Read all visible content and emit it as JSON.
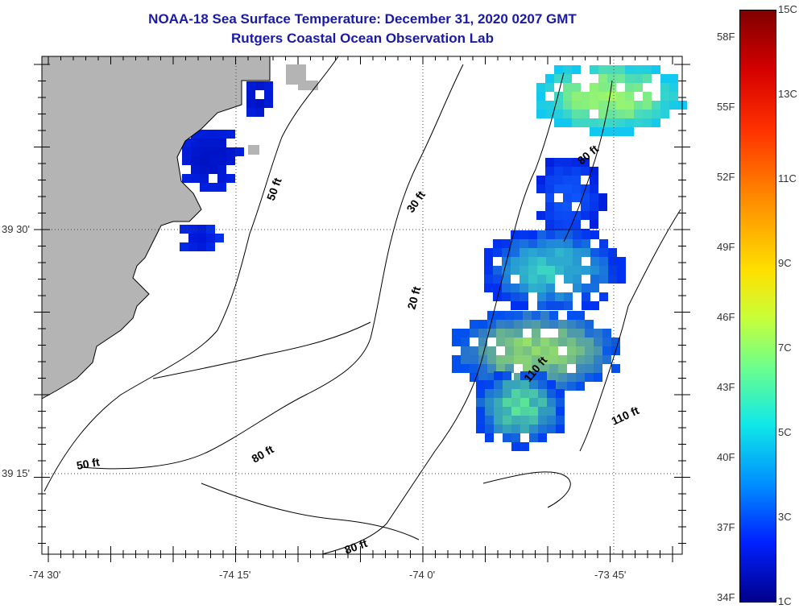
{
  "title_line1": "NOAA-18 Sea Surface Temperature:  December 31, 2020 0207 GMT",
  "title_line2": "Rutgers Coastal Ocean Observation Lab",
  "lat_labels": [
    "39 30'",
    "39 15'"
  ],
  "lon_labels": [
    "-74 30'",
    "-74 15'",
    "-74 0'",
    "-73 45'"
  ],
  "depth_labels": [
    "50 ft",
    "30 ft",
    "80 ft",
    "20 ft",
    "110 ft",
    "80 ft",
    "110 ft",
    "50 ft",
    "80 ft",
    "80 ft"
  ],
  "colorbar": {
    "fahrenheit": [
      "58F",
      "55F",
      "52F",
      "49F",
      "46F",
      "43F",
      "40F",
      "37F",
      "34F"
    ],
    "celsius": [
      "15C",
      "13C",
      "11C",
      "9C",
      "7C",
      "5C",
      "3C",
      "1C"
    ]
  },
  "colors": {
    "land": "#b4b4b4",
    "title": "#1a1aa6",
    "contour": "#000000"
  }
}
